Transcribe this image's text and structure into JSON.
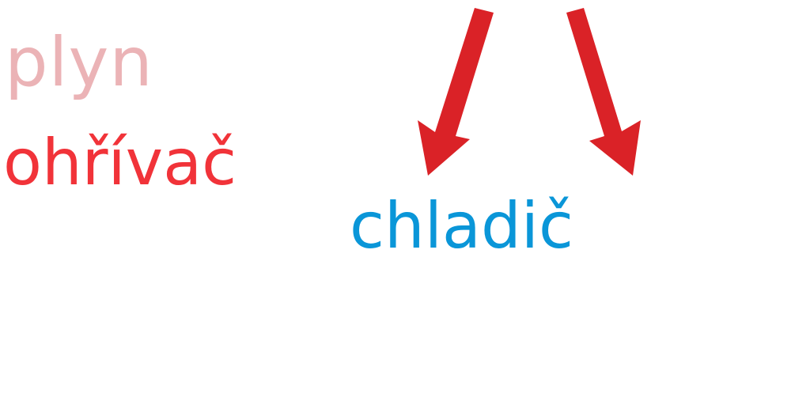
{
  "labels": {
    "gas": "plyn",
    "heater": "ohřívač",
    "cooler": "chladič"
  },
  "colors": {
    "gas": "#ebb3b6",
    "heater": "#f13339",
    "cooler": "#0a96d8",
    "arrow": "#da2227",
    "background": "#ffffff"
  }
}
